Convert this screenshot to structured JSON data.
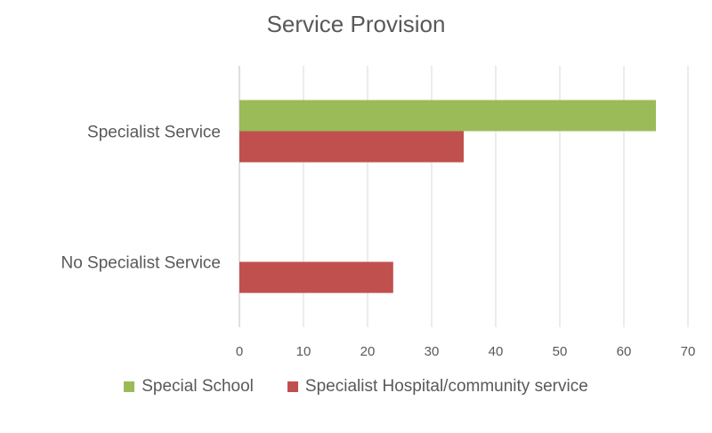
{
  "chart_data": {
    "type": "bar",
    "orientation": "horizontal",
    "title": "Service Provision",
    "categories": [
      "Specialist Service",
      "No Specialist Service"
    ],
    "series": [
      {
        "name": "Special School",
        "color": "#9bbb59",
        "values": [
          65,
          0
        ]
      },
      {
        "name": "Specialist Hospital/community service",
        "color": "#c0504d",
        "values": [
          35,
          24
        ]
      }
    ],
    "xlim": [
      0,
      70
    ],
    "xticks": [
      0,
      10,
      20,
      30,
      40,
      50,
      60,
      70
    ],
    "grid": true,
    "legend": "bottom"
  }
}
